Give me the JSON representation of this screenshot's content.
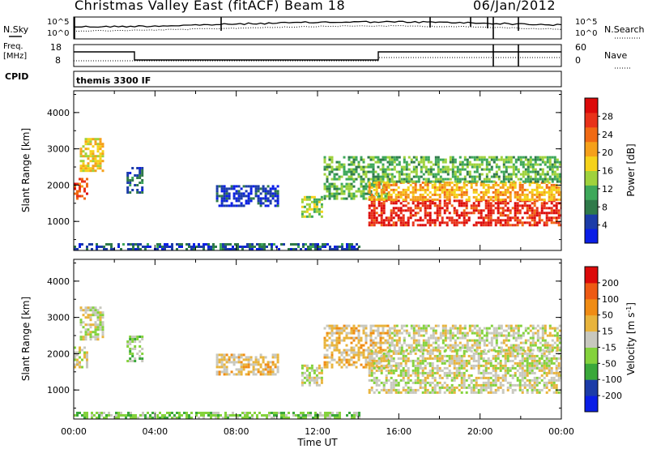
{
  "header": {
    "title": "Christmas Valley East (fitACF)",
    "beam": "Beam 18",
    "date": "06/Jan/2012"
  },
  "noise_panel": {
    "left_label": "N.Sky",
    "right_label": "N.Search",
    "left_ticks": [
      "10^5",
      "10^0"
    ],
    "right_ticks": [
      "10^5",
      "10^0"
    ]
  },
  "freq_panel": {
    "left_label_line1": "Freq.",
    "left_label_line2": "[MHz]",
    "right_label": "Nave",
    "left_ticks": [
      "18",
      "8"
    ],
    "right_ticks": [
      "60",
      "0"
    ]
  },
  "cpid_panel": {
    "label": "CPID",
    "program": "themis 3300 IF"
  },
  "colors": {
    "power": [
      "#0a1ee6",
      "#1c3ca8",
      "#2f7a4a",
      "#3ea85a",
      "#9fd23c",
      "#f5d21a",
      "#f5a01a",
      "#f06a14",
      "#e8321a",
      "#dc0a0a"
    ],
    "velocity": [
      "#0a1ee6",
      "#1c3ca8",
      "#3aa83a",
      "#84d23c",
      "#c8c8be",
      "#e8b43c",
      "#f08c14",
      "#ee5a14",
      "#dc0a0a"
    ]
  },
  "chart_data": [
    {
      "type": "heatmap",
      "name": "power",
      "title": "",
      "xlabel": "Time UT",
      "ylabel": "Slant Range [km]",
      "xlim": [
        0,
        24
      ],
      "ylim": [
        200,
        4600
      ],
      "x_ticks": [
        "00:00",
        "04:00",
        "08:00",
        "12:00",
        "16:00",
        "20:00",
        "00:00"
      ],
      "y_ticks": [
        "1000",
        "2000",
        "3000",
        "4000"
      ],
      "colorbar": {
        "label": "Power [dB]",
        "min": 0,
        "max": 32,
        "ticks": [
          "28",
          "24",
          "20",
          "16",
          "12",
          "8",
          "4"
        ]
      },
      "regions": [
        {
          "t0": 0.0,
          "t1": 0.6,
          "r0": 1650,
          "r1": 2200,
          "value": 26
        },
        {
          "t0": 0.3,
          "t1": 1.4,
          "r0": 2400,
          "r1": 3300,
          "value": 18
        },
        {
          "t0": 2.6,
          "t1": 3.4,
          "r0": 1800,
          "r1": 2500,
          "value": 6
        },
        {
          "t0": 7.0,
          "t1": 10.0,
          "r0": 1400,
          "r1": 2000,
          "value": 4
        },
        {
          "t0": 11.2,
          "t1": 12.2,
          "r0": 1100,
          "r1": 1700,
          "value": 14
        },
        {
          "t0": 12.3,
          "t1": 15.5,
          "r0": 1600,
          "r1": 2800,
          "value": 12
        },
        {
          "t0": 14.5,
          "t1": 24.0,
          "r0": 900,
          "r1": 1600,
          "value": 28
        },
        {
          "t0": 14.5,
          "t1": 24.0,
          "r0": 1600,
          "r1": 2100,
          "value": 20
        },
        {
          "t0": 15.5,
          "t1": 24.0,
          "r0": 2100,
          "r1": 2800,
          "value": 12
        },
        {
          "t0": 0.0,
          "t1": 14.0,
          "r0": 200,
          "r1": 400,
          "value": 6
        }
      ]
    },
    {
      "type": "heatmap",
      "name": "velocity",
      "title": "",
      "xlabel": "Time UT",
      "ylabel": "Slant Range [km]",
      "xlim": [
        0,
        24
      ],
      "ylim": [
        200,
        4600
      ],
      "x_ticks": [
        "00:00",
        "04:00",
        "08:00",
        "12:00",
        "16:00",
        "20:00",
        "00:00"
      ],
      "y_ticks": [
        "1000",
        "2000",
        "3000",
        "4000"
      ],
      "colorbar": {
        "label": "Velocity [m s-1]",
        "label_text": "Velocity [m s",
        "label_sup": "-1",
        "label_end": "]",
        "min": -250,
        "max": 250,
        "ticks": [
          "200",
          "100",
          "50",
          "15",
          "-15",
          "-50",
          "-100",
          "-200"
        ]
      },
      "regions": [
        {
          "t0": 0.0,
          "t1": 0.6,
          "r0": 1650,
          "r1": 2200,
          "value": 0
        },
        {
          "t0": 0.3,
          "t1": 1.4,
          "r0": 2400,
          "r1": 3300,
          "value": 0
        },
        {
          "t0": 2.6,
          "t1": 3.4,
          "r0": 1800,
          "r1": 2500,
          "value": -40
        },
        {
          "t0": 7.0,
          "t1": 10.0,
          "r0": 1400,
          "r1": 2000,
          "value": 45
        },
        {
          "t0": 11.2,
          "t1": 12.2,
          "r0": 1100,
          "r1": 1700,
          "value": 0
        },
        {
          "t0": 12.3,
          "t1": 15.5,
          "r0": 1600,
          "r1": 2800,
          "value": 45
        },
        {
          "t0": 14.5,
          "t1": 24.0,
          "r0": 900,
          "r1": 2100,
          "value": 0
        },
        {
          "t0": 15.5,
          "t1": 24.0,
          "r0": 2100,
          "r1": 2800,
          "value": 0
        },
        {
          "t0": 0.0,
          "t1": 14.0,
          "r0": 200,
          "r1": 400,
          "value": -60
        }
      ]
    }
  ]
}
